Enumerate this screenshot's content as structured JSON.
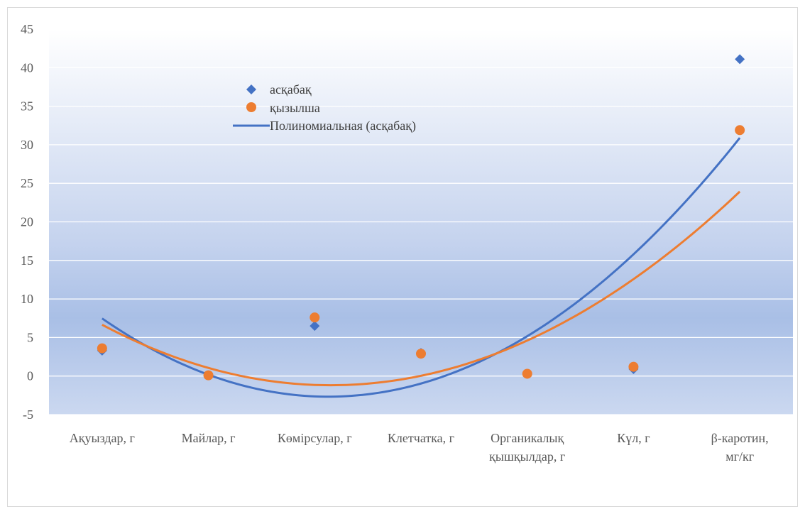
{
  "chart_data": {
    "type": "scatter",
    "categories": [
      "Ақуыздар, г",
      "Майлар, г",
      "Көмірсулар, г",
      "Клетчатка, г",
      "Органикалық қышқылдар, г",
      "Күл, г",
      "β-каротин, мг/кг"
    ],
    "series": [
      {
        "name": "асқабақ",
        "marker": "diamond",
        "color": "#4472C4",
        "values": [
          3.3,
          0.1,
          6.5,
          3.0,
          0.3,
          0.9,
          41.1
        ]
      },
      {
        "name": "қызылша",
        "marker": "circle",
        "color": "#ED7D31",
        "values": [
          3.6,
          0.1,
          7.6,
          2.9,
          0.3,
          1.2,
          31.9
        ]
      }
    ],
    "trendlines": [
      {
        "name": "Полиномиальная (асқабақ)",
        "color": "#4472C4",
        "type": "polynomial",
        "order": 2,
        "values": [
          7.4,
          0.3,
          -2.5,
          -1.3,
          5.2,
          16.0,
          30.8
        ]
      },
      {
        "name": "",
        "color": "#ED7D31",
        "type": "polynomial",
        "order": 2,
        "values": [
          6.7,
          1.0,
          -1.1,
          -0.1,
          4.6,
          12.8,
          23.8
        ]
      }
    ],
    "ylim": [
      -5,
      45
    ],
    "yticks": [
      -5,
      0,
      5,
      10,
      15,
      20,
      25,
      30,
      35,
      40,
      45
    ],
    "ytick_labels": [
      "-5",
      "0",
      "5",
      "10",
      "15",
      "20",
      "25",
      "30",
      "35",
      "40",
      "45"
    ],
    "grid": true,
    "legend_position": "top-center",
    "title": "",
    "xlabel": "",
    "ylabel": ""
  },
  "legend": {
    "items": [
      "асқабақ",
      "қызылша",
      "Полиномиальная (асқабақ)"
    ]
  }
}
